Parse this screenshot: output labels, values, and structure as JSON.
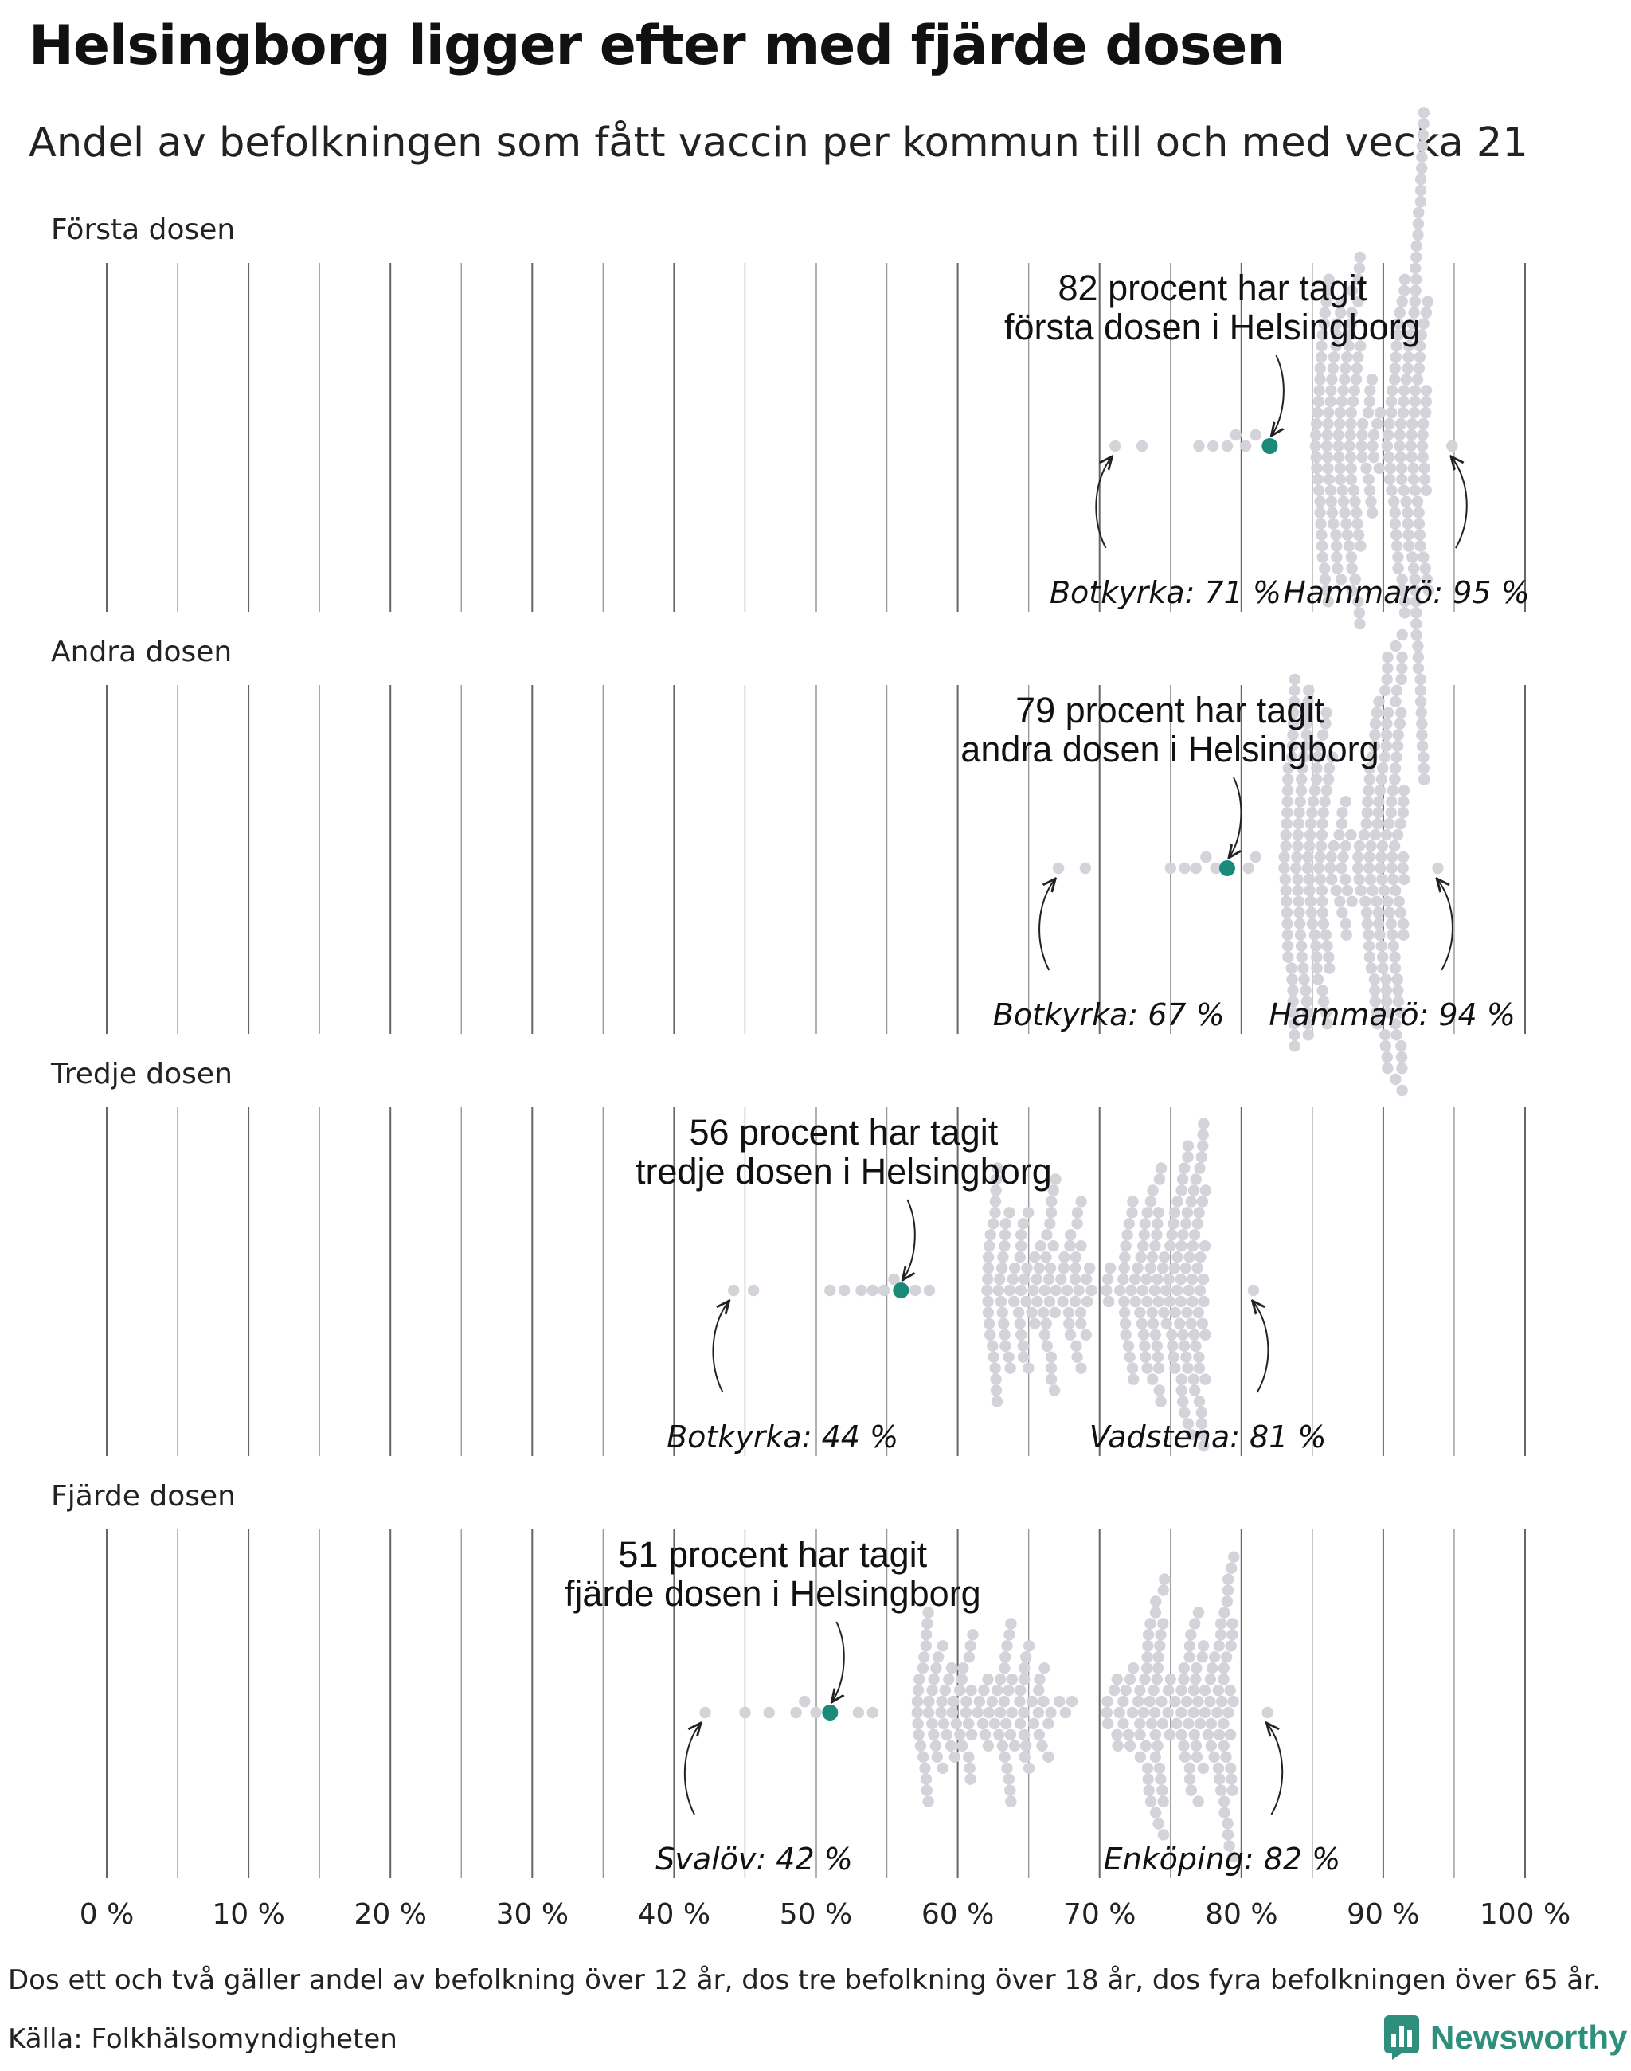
{
  "title": "Helsingborg ligger efter med fjärde dosen",
  "subtitle": "Andel av befolkningen som fått vaccin per kommun till och med vecka 21",
  "footnote": "Dos ett och två gäller andel av befolkning över 12 år, dos tre befolkning över 18 år, dos fyra befolkningen över 65 år.",
  "source": "Källa: Folkhälsomyndigheten",
  "brand": {
    "name": "Newsworthy",
    "icon": "newsworthy-logo-icon"
  },
  "colors": {
    "highlight": "#1a8a7a",
    "dots": "#d4d3d9",
    "grid": "#999999",
    "grid_major": "#666666"
  },
  "chart_data": {
    "type": "scatter",
    "style": "beeswarm",
    "xlim": [
      0,
      100
    ],
    "x_ticks": [
      0,
      10,
      20,
      30,
      40,
      50,
      60,
      70,
      80,
      90,
      100
    ],
    "x_tick_labels": [
      "0 %",
      "10 %",
      "20 %",
      "30 %",
      "40 %",
      "50 %",
      "60 %",
      "70 %",
      "80 %",
      "90 %",
      "100 %"
    ],
    "grid_step": 5,
    "panels": [
      {
        "name": "Första dosen",
        "highlight": {
          "municipality": "Helsingborg",
          "value": 82,
          "label_line1": "82 procent har tagit",
          "label_line2": "första dosen i Helsingborg"
        },
        "min": {
          "municipality": "Botkyrka",
          "value": 71,
          "label": "Botkyrka: 71 %"
        },
        "max": {
          "municipality": "Hammarö",
          "value": 95,
          "label": "Hammarö: 95 %"
        },
        "distribution": {
          "peak": 90,
          "spread_left": 4.8,
          "spread_right": 3.2,
          "tail_left": [
            71.1,
            73.0,
            77.0,
            78.0,
            79.0,
            79.6,
            80.3,
            81.0
          ]
        }
      },
      {
        "name": "Andra dosen",
        "highlight": {
          "municipality": "Helsingborg",
          "value": 79,
          "label_line1": "79 procent har tagit",
          "label_line2": "andra dosen i Helsingborg"
        },
        "min": {
          "municipality": "Botkyrka",
          "value": 67,
          "label": "Botkyrka: 67 %"
        },
        "max": {
          "municipality": "Hammarö",
          "value": 94,
          "label": "Hammarö: 94 %"
        },
        "distribution": {
          "peak": 88,
          "spread_left": 5.0,
          "spread_right": 3.5,
          "tail_left": [
            67.1,
            69.0,
            75.0,
            76.0,
            76.8,
            77.5,
            78.2,
            80.5,
            81.0
          ]
        }
      },
      {
        "name": "Tredje dosen",
        "highlight": {
          "municipality": "Helsingborg",
          "value": 56,
          "label_line1": "56 procent har tagit",
          "label_line2": "tredje dosen i Helsingborg"
        },
        "min": {
          "municipality": "Botkyrka",
          "value": 44,
          "label": "Botkyrka: 44 %"
        },
        "max": {
          "municipality": "Vadstena",
          "value": 81,
          "label": "Vadstena: 81 %"
        },
        "distribution": {
          "peak": 71,
          "spread_left": 9,
          "spread_right": 6.5,
          "tail_left": [
            44.2,
            45.6,
            51.0,
            52.0,
            53.2,
            54.0,
            54.8,
            55.5,
            57.0,
            58.0
          ]
        }
      },
      {
        "name": "Fjärde dosen",
        "highlight": {
          "municipality": "Helsingborg",
          "value": 51,
          "label_line1": "51 procent har tagit",
          "label_line2": "fjärde dosen i Helsingborg"
        },
        "min": {
          "municipality": "Svalöv",
          "value": 42,
          "label": "Svalöv: 42 %"
        },
        "max": {
          "municipality": "Enköping",
          "value": 82,
          "label": "Enköping: 82 %"
        },
        "distribution": {
          "peak": 70,
          "spread_left": 13,
          "spread_right": 9.5,
          "tail_left": [
            42.2,
            45.0,
            46.7,
            48.6,
            49.2,
            50.0,
            53.0,
            54.0
          ]
        }
      }
    ]
  }
}
